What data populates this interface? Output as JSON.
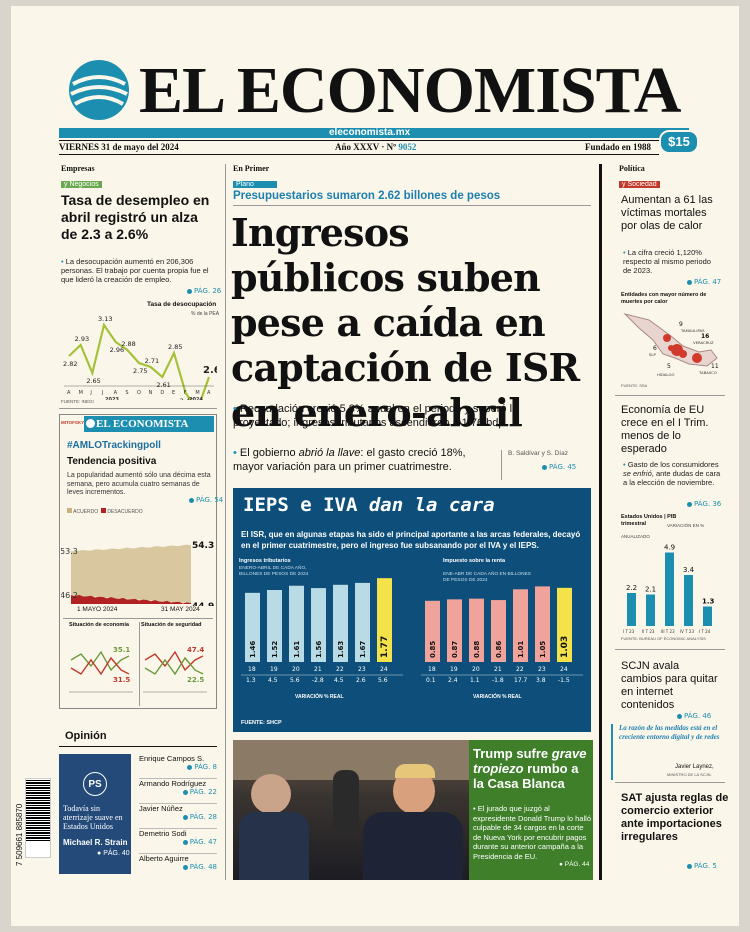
{
  "masthead": {
    "title": "EL ECONOMISTA",
    "site": "eleconomista.mx",
    "date": "VIERNES 31 de mayo del 2024",
    "edition": "Año XXXV · Nº",
    "edition_num": "9052",
    "founded": "Fundado en 1988",
    "price": "$15"
  },
  "left1": {
    "section": "Empresas",
    "subsection": "y Negocios",
    "headline": "Tasa de desempleo en abril registró un alza de 2.3 a 2.6%",
    "bullet": "La desocupación aumentó en 206,306 personas. El trabajo por cuenta propia fue el que lideró la creación de empleo.",
    "page": "PÁG. 26",
    "chart_title": "Tasa de desocupación",
    "chart_sub": "% de la PEA",
    "months": [
      "A",
      "M",
      "J",
      "J",
      "A",
      "S",
      "O",
      "N",
      "D",
      "E",
      "F",
      "M",
      "A"
    ],
    "year1": "2023",
    "year2": "2024",
    "source": "FUENTE: INEGI"
  },
  "poll": {
    "brand": "EL ECONOMISTA",
    "mitofsky": "MITOFSKY",
    "hashtag": "#AMLOTrackingpoll",
    "title": "Tendencia positiva",
    "text": "La popularidad aumentó sólo una décima esta semana, pero acumula cuatro semanas de leves incrementos.",
    "page": "PÁG. 54",
    "legend1": "ACUERDO",
    "legend2": "DESACUERDO",
    "date1": "1 MAYO 2024",
    "date2": "31 MAY 2024",
    "mini1": "Situación de economía",
    "mini2": "Situación de seguridad"
  },
  "opinion": {
    "label": "Opinión",
    "promo_headline": "Todavía sin aterrizaje suave en Estados Unidos",
    "promo_author": "Michael R. Strain",
    "promo_page": "PÁG. 40",
    "columnists": [
      {
        "name": "Enrique Campos S.",
        "page": "PÁG. 8"
      },
      {
        "name": "Armando Rodríguez",
        "page": "PÁG. 22"
      },
      {
        "name": "Javier Núñez",
        "page": "PÁG. 28"
      },
      {
        "name": "Demetrio Sodi",
        "page": "PÁG. 47"
      },
      {
        "name": "Alberto Aguirre",
        "page": "PÁG. 48"
      }
    ],
    "barcode": "7 509661 885870"
  },
  "main": {
    "section": "En Primer",
    "subsection": "Plano",
    "kicker": "Presupuestarios sumaron 2.62 billones de pesos",
    "headline": "Ingresos públicos suben pese a caída en captación de ISR en enero-abril",
    "bullet1": "Recaudación creció 5.8% anual en el periodo y superó lo proyectado; ingresos tributarios ascendieron a 1.76 bdp.",
    "bullet2a": "El gobierno ",
    "bullet2b": "abrió la llave",
    "bullet2c": ": el gasto creció 18%, mayor variación para un primer cuatrimestre.",
    "authors": "B. Saldívar y S. Díaz",
    "page": "PÁG. 45"
  },
  "infographic": {
    "title_a": "IEPS e IVA ",
    "title_b": "dan la cara",
    "text": "El ISR, que en algunas etapas ha sido el principal aportante a las arcas federales, decayó en el primer cuatrimestre, pero el ingreso fue subsanando por el IVA y el IEPS.",
    "c1_title": "Ingresos tributarios",
    "c1_sub": "ENERO-ABRIL DE CADA AÑO, BILLONES DE PESOS DE 2024",
    "c2_title": "Impuesto sobre la renta",
    "c2_sub": "ENE-ABR DE CADA AÑO EN BILLONES DE PESOS DE 2024",
    "var_label": "VARIACIÓN % REAL",
    "source": "FUENTE: SHCP"
  },
  "trump": {
    "headline_a": "Trump sufre ",
    "headline_b": "grave tropiezo",
    "headline_c": " rumbo a la Casa Blanca",
    "bullet": "El jurado que juzgó al expresidente Donald Trump lo halló culpable de 34 cargos en la corte de Nueva York por encubrir pagos durante su anterior campaña a la Presidencia de EU.",
    "page": "PÁG. 44"
  },
  "right": {
    "section": "Política",
    "subsection": "y Sociedad",
    "h1": "Aumentan a 61 las víctimas mortales por olas de calor",
    "b1": "La cifra creció 1,120% respecto al mismo periodo de 2023.",
    "p1": "PÁG. 47",
    "map_title": "Entidades con mayor número de muertes por calor",
    "map_labels": [
      "TAMAULIPAS",
      "VERACRUZ",
      "SLP",
      "HIDALGO",
      "TABASCO"
    ],
    "map_nums": [
      "9",
      "16",
      "6",
      "5",
      "11"
    ],
    "map_source": "FUENTE: SSA",
    "h2": "Economía de EU crece en el I Trim. menos de lo esperado",
    "b2a": "Gasto de los consumidores ",
    "b2b": "se enfrió",
    "b2c": ", ante dudas de cara a la elección de noviembre.",
    "p2": "PÁG. 36",
    "c_title": "Estados Unidos | PIB trimestral",
    "c_sub": "VARIACIÓN EN %",
    "c_sub2": "ANUALIZADO",
    "c_source": "FUENTE: BUREAU OF ECONOMIC ANALYSIS",
    "h3": "SCJN avala cambios para quitar en internet contenidos",
    "p3": "PÁG. 46",
    "quote": "La razón de las medidas está en el creciente entorno digital y de redes",
    "quote_author": "Javier Laynez,",
    "quote_role": "MINISTRO DE LA SCJN.",
    "h4": "SAT ajusta reglas de comercio exterior ante importaciones irregulares",
    "p4": "PÁG. 5"
  },
  "chart_data": [
    {
      "type": "line",
      "title": "Tasa de desocupación",
      "ylabel": "% de la PEA",
      "x": [
        "A",
        "M",
        "J",
        "J",
        "A",
        "S",
        "O",
        "N",
        "D",
        "E",
        "F",
        "M",
        "A"
      ],
      "values": [
        2.82,
        2.93,
        2.65,
        3.13,
        2.96,
        2.88,
        2.75,
        2.71,
        2.61,
        2.85,
        2.45,
        2.28,
        2.61
      ]
    },
    {
      "type": "area",
      "title": "Tendencia positiva",
      "series": [
        {
          "name": "ACUERDO",
          "start": 53.3,
          "end": 54.3
        },
        {
          "name": "DESACUERDO",
          "start": 46.2,
          "end": 44.9
        }
      ],
      "x": [
        "1 MAYO 2024",
        "31 MAY 2024"
      ]
    },
    {
      "type": "bar",
      "title": "Ingresos tributarios",
      "categories": [
        "18",
        "19",
        "20",
        "21",
        "22",
        "23",
        "24"
      ],
      "values": [
        1.46,
        1.52,
        1.61,
        1.56,
        1.63,
        1.67,
        1.77
      ],
      "variation": [
        "1.3",
        "4.5",
        "5.6",
        "-2.8",
        "4.5",
        "2.6",
        "5.6"
      ]
    },
    {
      "type": "bar",
      "title": "Impuesto sobre la renta",
      "categories": [
        "18",
        "19",
        "20",
        "21",
        "22",
        "23",
        "24"
      ],
      "values": [
        0.85,
        0.87,
        0.88,
        0.86,
        1.01,
        1.05,
        1.03
      ],
      "variation": [
        "0.1",
        "2.4",
        "1.1",
        "-1.8",
        "17.7",
        "3.8",
        "-1.5"
      ]
    },
    {
      "type": "bar",
      "title": "Estados Unidos | PIB trimestral",
      "categories": [
        "I T 23",
        "II T 23",
        "III T 23",
        "IV T 23",
        "I T 24"
      ],
      "values": [
        2.2,
        2.1,
        4.9,
        3.4,
        1.3
      ]
    },
    {
      "type": "line",
      "title": "Situación de economía",
      "series": [
        {
          "name": "MEJOR",
          "end": 35.1
        },
        {
          "name": "PEOR",
          "end": 31.5
        }
      ]
    },
    {
      "type": "line",
      "title": "Situación de seguridad",
      "series": [
        {
          "name": "PEOR",
          "end": 47.4
        },
        {
          "name": "MEJOR",
          "end": 22.5
        }
      ]
    }
  ]
}
